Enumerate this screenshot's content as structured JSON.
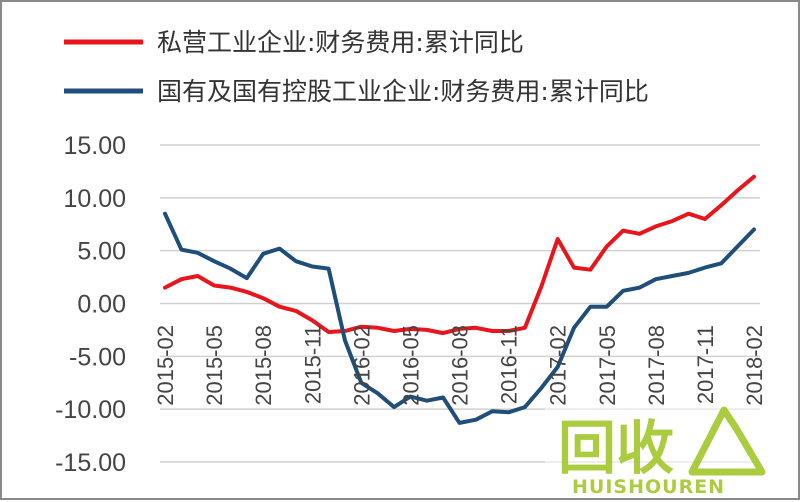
{
  "chart_data": {
    "type": "line",
    "legend_position": "top",
    "grid": true,
    "ylim": [
      -15,
      15
    ],
    "yticks": [
      "15.00",
      "10.00",
      "5.00",
      "0.00",
      "-5.00",
      "-10.00",
      "-15.00"
    ],
    "categories": [
      "2015-02",
      "2015-03",
      "2015-04",
      "2015-05",
      "2015-06",
      "2015-07",
      "2015-08",
      "2015-09",
      "2015-10",
      "2015-11",
      "2015-12",
      "2016-01",
      "2016-02",
      "2016-03",
      "2016-04",
      "2016-05",
      "2016-06",
      "2016-07",
      "2016-08",
      "2016-09",
      "2016-10",
      "2016-11",
      "2016-12",
      "2017-01",
      "2017-02",
      "2017-03",
      "2017-04",
      "2017-05",
      "2017-06",
      "2017-07",
      "2017-08",
      "2017-09",
      "2017-10",
      "2017-11",
      "2017-12",
      "2018-01",
      "2018-02"
    ],
    "xtick_labels": [
      "2015-02",
      "2015-05",
      "2015-08",
      "2015-11",
      "2016-02",
      "2016-05",
      "2016-08",
      "2016-11",
      "2017-02",
      "2017-05",
      "2017-08",
      "2017-11",
      "2018-02"
    ],
    "series": [
      {
        "name": "私营工业企业:财务费用:累计同比",
        "color": "#e8161c",
        "values": [
          1.5,
          2.3,
          2.6,
          1.7,
          1.5,
          1.1,
          0.5,
          -0.3,
          -0.7,
          -1.6,
          -2.7,
          -2.6,
          -2.2,
          -2.3,
          -2.6,
          -2.4,
          -2.5,
          -2.8,
          -2.4,
          -2.3,
          -2.6,
          -2.6,
          -2.3,
          1.6,
          6.1,
          3.4,
          3.2,
          5.4,
          6.9,
          6.6,
          7.3,
          7.8,
          8.5,
          8.0,
          9.3,
          10.7,
          12.0
        ]
      },
      {
        "name": "国有及国有控股工业企业:财务费用:累计同比",
        "color": "#1f4e79",
        "values": [
          8.5,
          5.1,
          4.8,
          4.0,
          3.3,
          2.4,
          4.7,
          5.2,
          4.0,
          3.5,
          3.3,
          -3.5,
          -7.5,
          -8.5,
          -9.8,
          -8.8,
          -9.2,
          -8.9,
          -11.3,
          -11.0,
          -10.2,
          -10.3,
          -9.8,
          -8.0,
          -6.0,
          -2.3,
          -0.3,
          -0.3,
          1.2,
          1.5,
          2.3,
          2.6,
          2.9,
          3.4,
          3.8,
          5.4,
          7.0
        ]
      }
    ]
  },
  "watermark": {
    "text_cn": "回收",
    "text_en": "HUISHOUREN",
    "color": "#a6c82f"
  }
}
